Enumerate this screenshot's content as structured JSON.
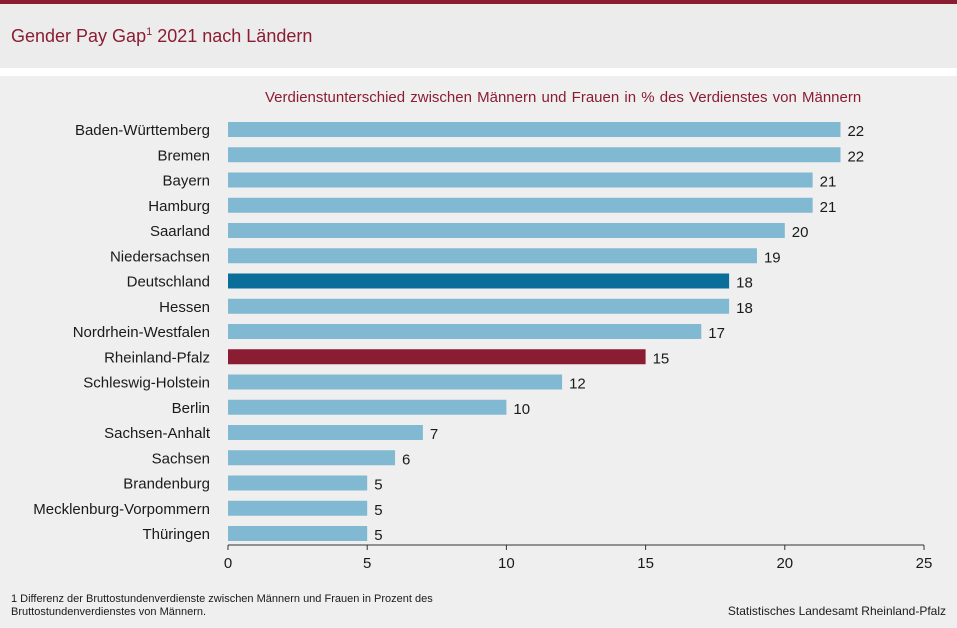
{
  "header": {
    "title": "Gender Pay Gap",
    "title_sup": "1",
    "title_rest": " 2021 nach Ländern"
  },
  "chart_data": {
    "type": "bar",
    "orientation": "horizontal",
    "title": "Gender Pay Gap 2021 nach Ländern",
    "subtitle": "Verdienstunterschied  zwischen Männern  und Frauen  in % des Verdienstes von Männern",
    "categories": [
      "Baden-Württemberg",
      "Bremen",
      "Bayern",
      "Hamburg",
      "Saarland",
      "Niedersachsen",
      "Deutschland",
      "Hessen",
      "Nordrhein-Westfalen",
      "Rheinland-Pfalz",
      "Schleswig-Holstein",
      "Berlin",
      "Sachsen-Anhalt",
      "Sachsen",
      "Brandenburg",
      "Mecklenburg-Vorpommern",
      "Thüringen"
    ],
    "values": [
      22,
      22,
      21,
      21,
      20,
      19,
      18,
      18,
      17,
      15,
      12,
      10,
      7,
      6,
      5,
      5,
      5
    ],
    "highlight": {
      "Deutschland": "#0a6e9a",
      "Rheinland-Pfalz": "#8b1d33"
    },
    "default_color": "#82b9d2",
    "xlim": [
      0,
      25
    ],
    "xticks": [
      0,
      5,
      10,
      15,
      20,
      25
    ],
    "xlabel": "",
    "ylabel": ""
  },
  "footnote": "1 Differenz der Bruttostundenverdienste zwischen Männern und Frauen in Prozent des Bruttostundenverdienstes von Männern.",
  "source": "Statistisches Landesamt  Rheinland-Pfalz",
  "colors": {
    "accent": "#8b1d33",
    "background": "#efefef"
  }
}
